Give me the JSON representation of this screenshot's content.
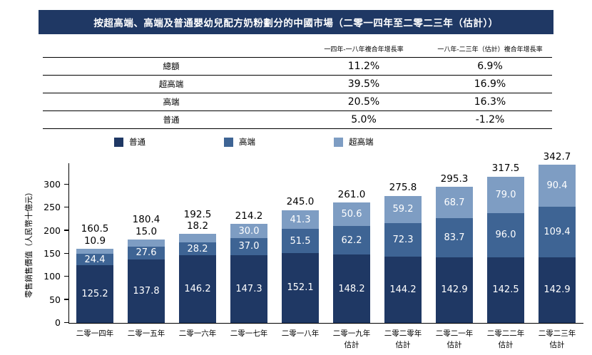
{
  "title": "按超高端、高端及普通嬰幼兒配方奶粉劃分的中國市場（二零一四年至二零二三年（估計））",
  "table": {
    "col1_header": "一四年-一八年複合年增長率",
    "col2_header": "一八年-二三年（估計）複合年增長率",
    "rows": [
      {
        "label": "總額",
        "v1": "11.2%",
        "v2": "6.9%"
      },
      {
        "label": "超高端",
        "v1": "39.5%",
        "v2": "16.9%"
      },
      {
        "label": "高端",
        "v1": "20.5%",
        "v2": "16.3%"
      },
      {
        "label": "普通",
        "v1": "5.0%",
        "v2": "-1.2%"
      }
    ]
  },
  "chart_data": {
    "type": "bar",
    "stacked": true,
    "title": "",
    "ylabel": "零售銷售價值（人民幣十億元）",
    "ylim": [
      0,
      300
    ],
    "ytick_step": 50,
    "grid": false,
    "legend_position": "top",
    "categories": [
      [
        "二零一四年"
      ],
      [
        "二零一五年"
      ],
      [
        "二零一六年"
      ],
      [
        "二零一七年"
      ],
      [
        "二零一八年"
      ],
      [
        "二零一九年",
        "估計"
      ],
      [
        "二零二零年",
        "估計"
      ],
      [
        "二零二一年",
        "估計"
      ],
      [
        "二零二二年",
        "估計"
      ],
      [
        "二零二三年",
        "估計"
      ]
    ],
    "series": [
      {
        "name": "普通",
        "color": "#1F3864",
        "values": [
          125.2,
          137.8,
          146.2,
          147.3,
          152.1,
          148.2,
          144.2,
          142.9,
          142.5,
          142.9
        ]
      },
      {
        "name": "高端",
        "color": "#3E6494",
        "values": [
          24.4,
          27.6,
          28.2,
          37.0,
          51.5,
          62.2,
          72.3,
          83.7,
          96.0,
          109.4
        ]
      },
      {
        "name": "超高端",
        "color": "#7E9DC3",
        "values": [
          10.9,
          15.0,
          18.2,
          30.0,
          41.3,
          50.6,
          59.2,
          68.7,
          79.0,
          90.4
        ]
      }
    ],
    "totals": [
      160.5,
      180.4,
      192.5,
      214.2,
      245.0,
      261.0,
      275.8,
      295.3,
      317.5,
      342.7
    ]
  },
  "colors": {
    "title_bar_bg": "#1F3864",
    "title_bar_text": "#FFFFFF"
  }
}
